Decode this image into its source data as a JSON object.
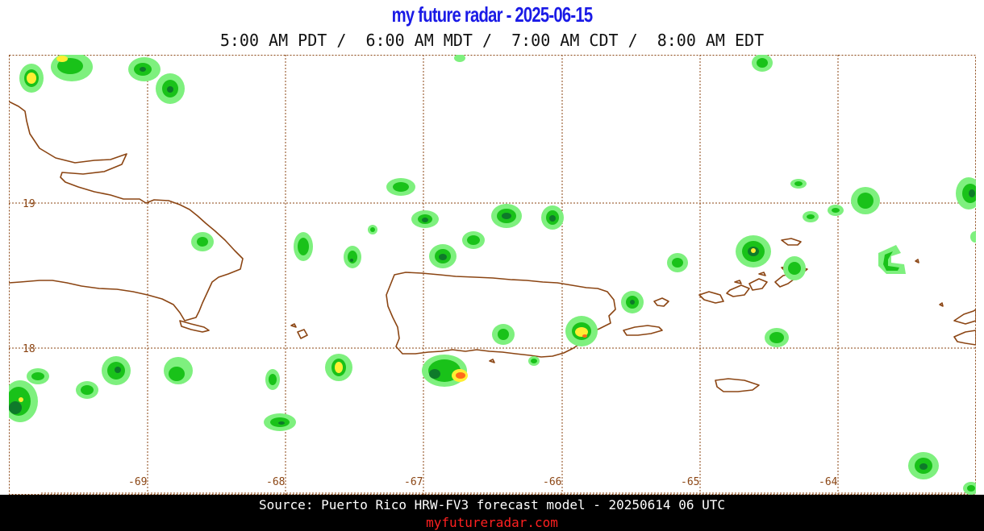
{
  "header": {
    "title": "my future radar - 2025-06-15",
    "times": "5:00 AM PDT /  6:00 AM MDT /  7:00 AM CDT /  8:00 AM EDT"
  },
  "map": {
    "lat_labels": [
      "19",
      "18"
    ],
    "lon_labels": [
      "-69",
      "-68",
      "-67",
      "-66",
      "-65",
      "-64"
    ],
    "colors": {
      "coastline": "#8b4513",
      "grid": "#8b4513",
      "radar_light": "#7ef07e",
      "radar_mid": "#19c219",
      "radar_dark": "#0e7a2a",
      "radar_yellow": "#ffee33",
      "radar_orange": "#ff6a1a"
    }
  },
  "footer": {
    "source": "Source: Puerto Rico HRW-FV3 forecast model - 20250614 06 UTC",
    "site": "myfutureradar.com"
  }
}
